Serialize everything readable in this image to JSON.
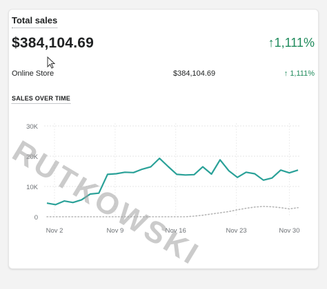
{
  "card": {
    "title": "Total sales",
    "total": "$384,104.69",
    "change": "1,111%",
    "breakdown": [
      {
        "label": "Online Store",
        "value": "$384,104.69",
        "change": "1,111%"
      }
    ],
    "section_title": "SALES OVER TIME"
  },
  "watermark": "RUTKOWSKI",
  "colors": {
    "primary": "#2aa198",
    "positive": "#1f8a5b",
    "comparison": "#b5b5b5"
  },
  "icons": {
    "arrow": "arrow-up-icon",
    "cursor": "mouse-pointer-icon"
  },
  "chart_data": {
    "type": "line",
    "x_ticks": [
      "Nov 2",
      "Nov 9",
      "Nov 16",
      "Nov 23",
      "Nov 30"
    ],
    "y_ticks": [
      "30K",
      "20K",
      "10K",
      "0"
    ],
    "ylim": [
      0,
      30000
    ],
    "series": [
      {
        "style": "solid",
        "values": [
          4500,
          4000,
          5200,
          4700,
          5600,
          7500,
          7800,
          14000,
          14200,
          14700,
          14600,
          15700,
          16500,
          19300,
          16600,
          14000,
          13800,
          13900,
          16500,
          14100,
          18800,
          15200,
          13000,
          14700,
          14200,
          12100,
          12800,
          15400,
          14500,
          15400
        ]
      },
      {
        "style": "dotted",
        "values": [
          0,
          0,
          0,
          0,
          0,
          0,
          0,
          0,
          0,
          0,
          0,
          0,
          0,
          0,
          0,
          0,
          0,
          200,
          500,
          900,
          1300,
          1700,
          2300,
          2800,
          3200,
          3400,
          3300,
          3000,
          2600,
          3000
        ]
      }
    ]
  }
}
